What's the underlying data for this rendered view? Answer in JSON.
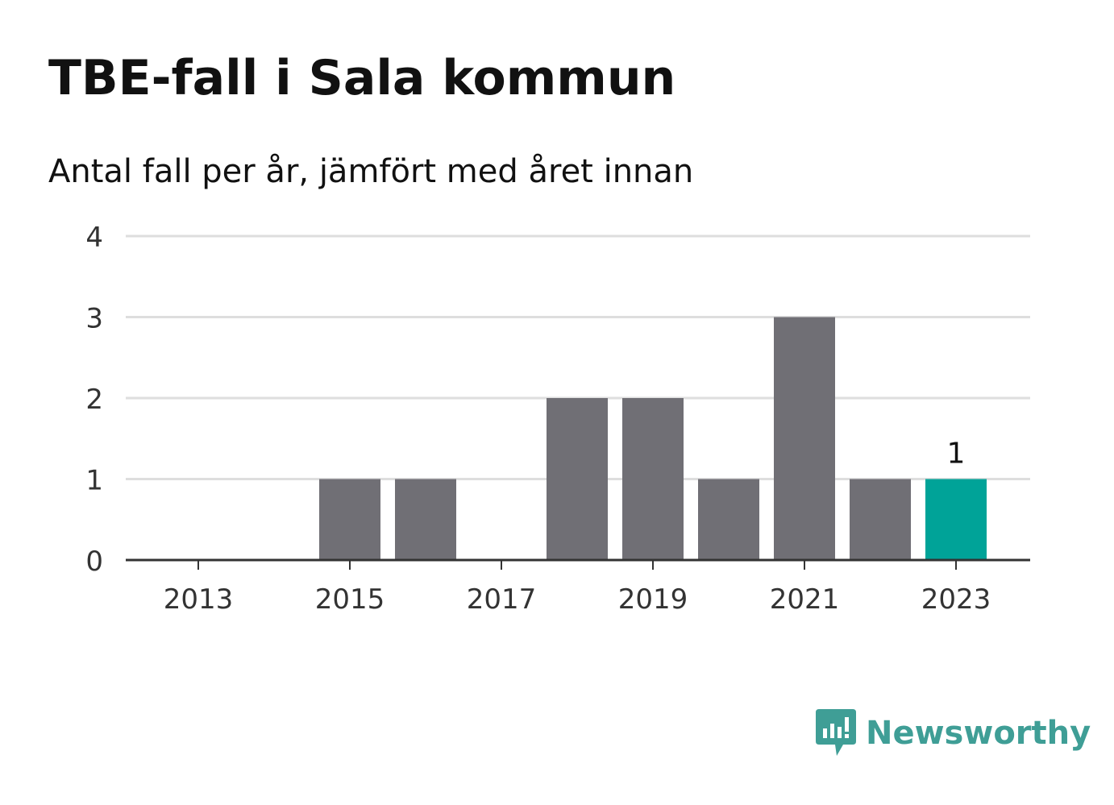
{
  "chart_data": {
    "type": "bar",
    "title": "TBE-fall i Sala kommun",
    "subtitle": "Antal fall per år, jämfört med året innan",
    "xlabel": "",
    "ylabel": "",
    "categories": [
      "2013",
      "2014",
      "2015",
      "2016",
      "2017",
      "2018",
      "2019",
      "2020",
      "2021",
      "2022",
      "2023"
    ],
    "values": [
      0,
      0,
      1,
      1,
      0,
      2,
      2,
      1,
      3,
      1,
      1
    ],
    "x_tick_labels": [
      "2013",
      "2015",
      "2017",
      "2019",
      "2021",
      "2023"
    ],
    "y_ticks": [
      "0",
      "1",
      "2",
      "3",
      "4"
    ],
    "ylim": [
      0,
      4
    ],
    "grid": true,
    "highlight_index": 10,
    "highlight_label": "1",
    "colors": {
      "bar": "#706f75",
      "highlight": "#00a398",
      "grid": "#dedede",
      "axis": "#333333",
      "tick_text": "#333333"
    }
  },
  "brand": {
    "name": "Newsworthy",
    "icon": "newsworthy-logo-icon",
    "color": "#3f9e96"
  }
}
